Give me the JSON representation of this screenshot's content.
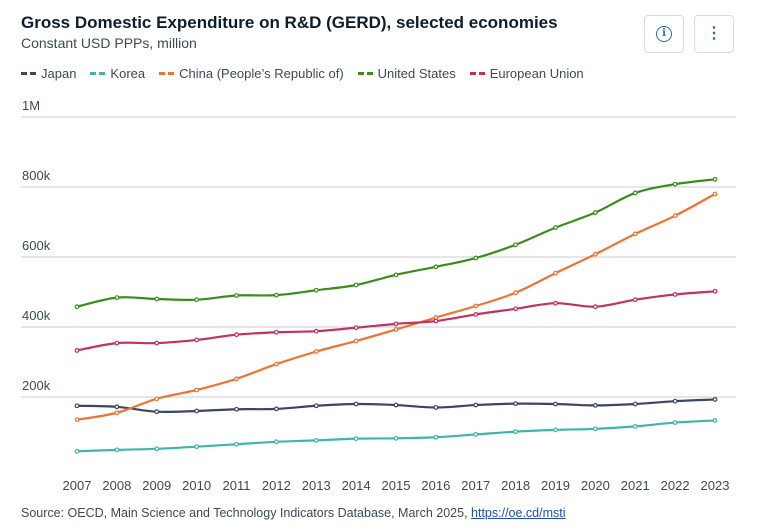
{
  "header": {
    "title": "Gross Domestic Expenditure on R&D (GERD), selected economies",
    "subtitle": "Constant USD PPPs, million",
    "info_icon": "info-icon",
    "more_icon": "more-vertical-icon"
  },
  "source": {
    "text": "Source: OECD, Main Science and Technology Indicators Database, March 2025,",
    "link": "https://oe.cd/msti"
  },
  "chart_data": {
    "type": "line",
    "title": "Gross Domestic Expenditure on R&D (GERD), selected economies",
    "ylabel": "Constant USD PPPs, million",
    "xlabel": "",
    "ylim": [
      0,
      1000000
    ],
    "y_ticks": [
      200000,
      400000,
      600000,
      800000,
      1000000
    ],
    "y_tick_labels": [
      "200k",
      "400k",
      "600k",
      "800k",
      "1M"
    ],
    "grid": true,
    "legend": "top-left",
    "x": [
      2007,
      2008,
      2009,
      2010,
      2011,
      2012,
      2013,
      2014,
      2015,
      2016,
      2017,
      2018,
      2019,
      2020,
      2021,
      2022,
      2023
    ],
    "series": [
      {
        "name": "Japan",
        "color": "#3b4566",
        "values": [
          175000,
          172000,
          158000,
          160000,
          165000,
          166000,
          175000,
          180000,
          177000,
          170000,
          177000,
          181000,
          180000,
          176000,
          180000,
          188000,
          193000
        ]
      },
      {
        "name": "Korea",
        "color": "#3fb6a8",
        "values": [
          45000,
          49000,
          52000,
          58000,
          65000,
          72000,
          76000,
          81000,
          82000,
          85000,
          93000,
          101000,
          106000,
          109000,
          116000,
          127000,
          133000
        ]
      },
      {
        "name": "China (People’s Republic of)",
        "color": "#f0722d",
        "values": [
          135000,
          155000,
          195000,
          220000,
          252000,
          294000,
          330000,
          360000,
          393000,
          427000,
          460000,
          498000,
          554000,
          608000,
          666000,
          718000,
          780000
        ]
      },
      {
        "name": "United States",
        "color": "#3c8c1b",
        "values": [
          458000,
          484000,
          480000,
          478000,
          490000,
          491000,
          505000,
          520000,
          549000,
          572000,
          597000,
          635000,
          684000,
          727000,
          783000,
          808000,
          822000
        ]
      },
      {
        "name": "European Union",
        "color": "#c33062",
        "values": [
          333000,
          354000,
          354000,
          363000,
          378000,
          385000,
          388000,
          398000,
          409000,
          417000,
          436000,
          452000,
          468000,
          458000,
          478000,
          493000,
          502000
        ]
      }
    ]
  }
}
